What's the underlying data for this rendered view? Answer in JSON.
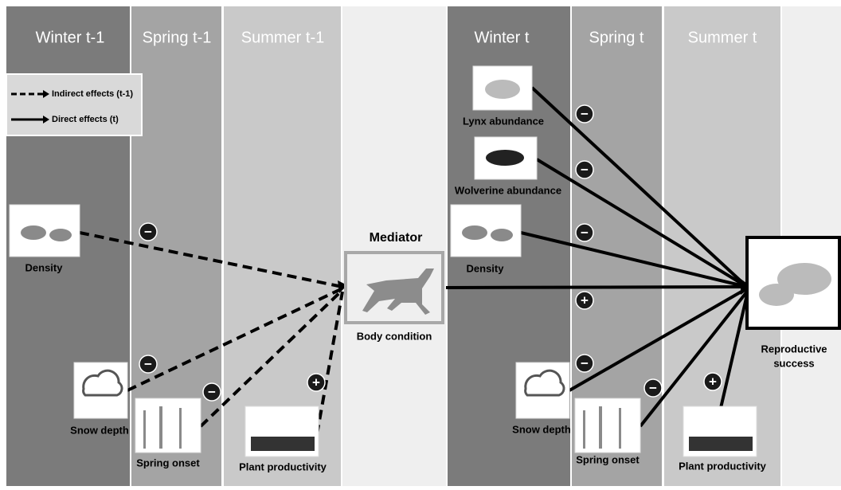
{
  "headers": [
    "Winter t-1",
    "Spring t-1",
    "Summer t-1",
    "Winter t",
    "Spring t",
    "Summer t"
  ],
  "legend": [
    "Indirect effects (t-1)",
    "Direct effects (t)"
  ],
  "mediator_title": "Mediator",
  "nodes": [
    "Density",
    "Snow depth",
    "Spring onset",
    "Plant productivity",
    "Body condition",
    "Lynx abundance",
    "Wolverine abundance",
    "Density",
    "Snow depth",
    "Spring onset",
    "Plant productivity",
    "Reproductive",
    "success"
  ],
  "signs": [
    "−",
    "−",
    "−",
    "+",
    "−",
    "−",
    "−",
    "+",
    "−",
    "−",
    "+"
  ]
}
